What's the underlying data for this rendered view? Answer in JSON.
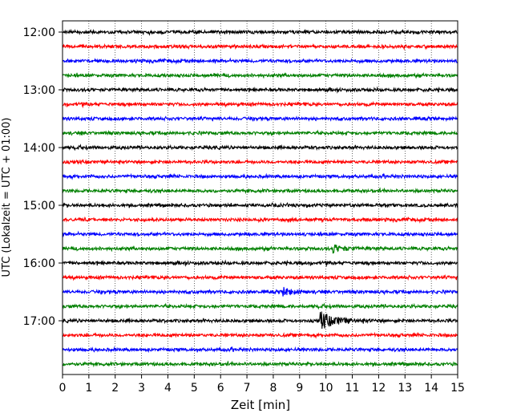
{
  "chart_data": {
    "type": "line",
    "title": "",
    "xlabel": "Zeit  [min]",
    "ylabel": "UTC (Lokalzeit = UTC + 01:00)",
    "xlim": [
      0,
      15
    ],
    "x_ticks": [
      "0",
      "1",
      "2",
      "3",
      "4",
      "5",
      "6",
      "7",
      "8",
      "9",
      "10",
      "11",
      "12",
      "13",
      "14",
      "15"
    ],
    "y_tick_labels": [
      "12:00",
      "13:00",
      "14:00",
      "15:00",
      "16:00",
      "17:00"
    ],
    "grid": "vertical dotted",
    "trace_interval_min": 15,
    "trace_colors": [
      "#000000",
      "#ff0000",
      "#0000ff",
      "#008000"
    ],
    "traces": [
      {
        "start": "12:00",
        "color": "#000000"
      },
      {
        "start": "12:15",
        "color": "#ff0000"
      },
      {
        "start": "12:30",
        "color": "#0000ff"
      },
      {
        "start": "12:45",
        "color": "#008000"
      },
      {
        "start": "13:00",
        "color": "#000000"
      },
      {
        "start": "13:15",
        "color": "#ff0000"
      },
      {
        "start": "13:30",
        "color": "#0000ff"
      },
      {
        "start": "13:45",
        "color": "#008000"
      },
      {
        "start": "14:00",
        "color": "#000000"
      },
      {
        "start": "14:15",
        "color": "#ff0000"
      },
      {
        "start": "14:30",
        "color": "#0000ff"
      },
      {
        "start": "14:45",
        "color": "#008000"
      },
      {
        "start": "15:00",
        "color": "#000000"
      },
      {
        "start": "15:15",
        "color": "#ff0000"
      },
      {
        "start": "15:30",
        "color": "#0000ff"
      },
      {
        "start": "15:45",
        "color": "#008000"
      },
      {
        "start": "16:00",
        "color": "#000000"
      },
      {
        "start": "16:15",
        "color": "#ff0000"
      },
      {
        "start": "16:30",
        "color": "#0000ff"
      },
      {
        "start": "16:45",
        "color": "#008000"
      },
      {
        "start": "17:00",
        "color": "#000000"
      },
      {
        "start": "17:15",
        "color": "#ff0000"
      },
      {
        "start": "17:30",
        "color": "#0000ff"
      },
      {
        "start": "17:45",
        "color": "#008000"
      }
    ],
    "events": [
      {
        "trace_start": "15:45",
        "minute": 10.3,
        "amplitude": "small"
      },
      {
        "trace_start": "16:30",
        "minute": 8.4,
        "amplitude": "small"
      },
      {
        "trace_start": "17:00",
        "minute": 9.8,
        "amplitude": "large"
      }
    ]
  }
}
